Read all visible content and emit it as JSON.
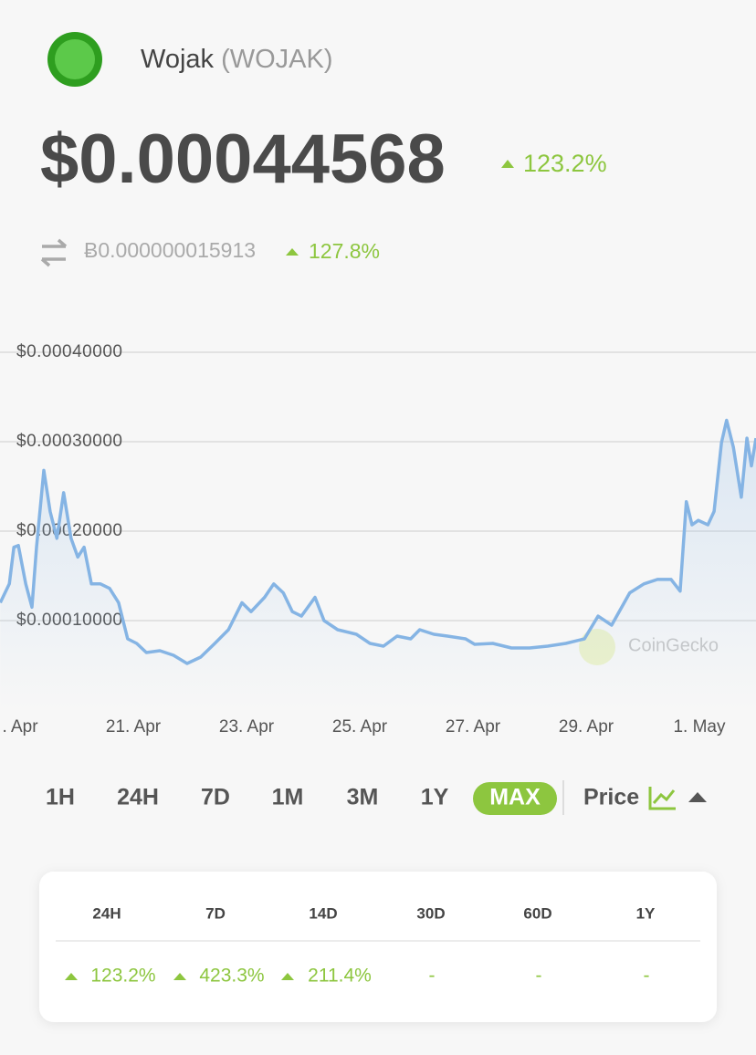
{
  "header": {
    "name": "Wojak",
    "symbol": "(WOJAK)",
    "price": "$0.00044568",
    "change": "123.2%",
    "btc_price": "Ƀ0.000000015913",
    "btc_change": "127.8%"
  },
  "chart_data": {
    "type": "line",
    "color": "#85b4e4",
    "watermark": "CoinGecko",
    "x": [
      18.65,
      18.81,
      18.89,
      18.97,
      19.1,
      19.21,
      19.29,
      19.42,
      19.53,
      19.65,
      19.77,
      19.9,
      20.02,
      20.13,
      20.26,
      20.42,
      20.58,
      20.74,
      20.9,
      21.06,
      21.23,
      21.47,
      21.71,
      21.95,
      22.19,
      22.44,
      22.68,
      22.92,
      23.08,
      23.32,
      23.48,
      23.65,
      23.81,
      23.97,
      24.21,
      24.37,
      24.61,
      24.94,
      25.18,
      25.42,
      25.66,
      25.9,
      26.06,
      26.31,
      26.55,
      26.87,
      27.03,
      27.35,
      27.68,
      28.0,
      28.32,
      28.64,
      28.97,
      29.21,
      29.45,
      29.77,
      30.02,
      30.26,
      30.5,
      30.66,
      30.77,
      30.87,
      30.98,
      31.15,
      31.26,
      31.39,
      31.48,
      31.6,
      31.74,
      31.84,
      31.92,
      32.0
    ],
    "values": [
      0.00012,
      0.000141,
      0.000182,
      0.000184,
      0.000141,
      0.000115,
      0.000182,
      0.000268,
      0.000222,
      0.000192,
      0.000243,
      0.000192,
      0.000171,
      0.000182,
      0.000141,
      0.000141,
      0.000136,
      0.00012,
      7.96e-05,
      7.45e-05,
      6.43e-05,
      6.63e-05,
      6.12e-05,
      5.2e-05,
      5.92e-05,
      7.45e-05,
      8.98e-05,
      0.00012,
      0.00011,
      0.000126,
      0.000141,
      0.000131,
      0.00011,
      0.000105,
      0.000126,
      0.0001,
      8.98e-05,
      8.47e-05,
      7.45e-05,
      7.14e-05,
      8.27e-05,
      7.96e-05,
      8.98e-05,
      8.47e-05,
      8.27e-05,
      7.96e-05,
      7.35e-05,
      7.45e-05,
      6.94e-05,
      6.94e-05,
      7.14e-05,
      7.45e-05,
      7.96e-05,
      0.000105,
      9.49e-05,
      0.000131,
      0.000141,
      0.000146,
      0.000146,
      0.000133,
      0.000233,
      0.000207,
      0.000212,
      0.000207,
      0.000222,
      0.000299,
      0.000324,
      0.000294,
      0.000238,
      0.000304,
      0.000273,
      0.000304
    ],
    "xlim": [
      18.645,
      32.0
    ],
    "xticks": [
      {
        "value": 19,
        "label": ". Apr"
      },
      {
        "value": 21,
        "label": "21. Apr"
      },
      {
        "value": 23,
        "label": "23. Apr"
      },
      {
        "value": 25,
        "label": "25. Apr"
      },
      {
        "value": 27,
        "label": "27. Apr"
      },
      {
        "value": 29,
        "label": "29. Apr"
      },
      {
        "value": 31,
        "label": "1. May"
      }
    ],
    "ylim": [
      0,
      0.00045
    ],
    "yticks": [
      {
        "value": 0.0001,
        "label": "$0.00010000"
      },
      {
        "value": 0.0002,
        "label": "$0.00020000"
      },
      {
        "value": 0.0003,
        "label": "$0.00030000"
      },
      {
        "value": 0.0004,
        "label": "$0.00040000"
      }
    ],
    "grid": true
  },
  "tabs": [
    "1H",
    "24H",
    "7D",
    "1M",
    "3M",
    "1Y",
    "MAX"
  ],
  "active_tab": "MAX",
  "price_toggle": "Price",
  "table": {
    "headers": [
      "24H",
      "7D",
      "14D",
      "30D",
      "60D",
      "1Y"
    ],
    "rows": [
      [
        "123.2%",
        "423.3%",
        "211.4%",
        "-",
        "-",
        "-"
      ]
    ]
  }
}
